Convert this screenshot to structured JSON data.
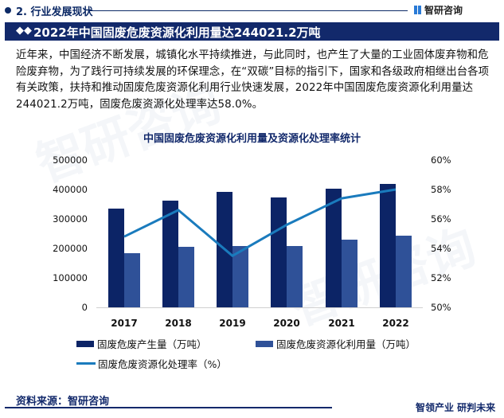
{
  "header": {
    "section_label": "2. 行业发展现状",
    "brand": "智研咨询",
    "title": "2022年中国固废危废资源化利用量达244021.2万吨",
    "title_icon": "diamond-icon"
  },
  "intro": "近年来，中国经济不断发展，城镇化水平持续推进，与此同时，也产生了大量的工业固体废弃物和危险废弃物，为了践行可持续发展的环保理念，在“双碳”目标的指引下，国家和各级政府相继出台各项有关政策，扶持和推动固废危废资源化利用行业快速发展，2022年中国固废危废资源化利用量达244021.2万吨，固废危废资源化处理率达58.0%。",
  "chart_data": {
    "type": "bar+line",
    "title": "中国固废危废资源化利用量及资源化处理率统计",
    "categories": [
      "2017",
      "2018",
      "2019",
      "2020",
      "2021",
      "2022"
    ],
    "series": [
      {
        "name": "固废危废产生量（万吨）",
        "type": "bar",
        "axis": "left",
        "color": "#0c2466",
        "values": [
          335000,
          362000,
          392000,
          373000,
          403000,
          419000
        ]
      },
      {
        "name": "固废危废资源化利用量（万吨）",
        "type": "bar",
        "axis": "left",
        "color": "#2f5198",
        "values": [
          184000,
          205000,
          208000,
          208000,
          230000,
          244021.2
        ]
      },
      {
        "name": "固废危废资源化处理率（%）",
        "type": "line",
        "axis": "right",
        "color": "#1a7bbd",
        "values": [
          54.8,
          56.6,
          53.5,
          55.6,
          57.4,
          58.0
        ]
      }
    ],
    "y_left": {
      "ticks": [
        "500000",
        "400000",
        "300000",
        "200000",
        "100000",
        "0"
      ],
      "range": [
        0,
        500000
      ]
    },
    "y_right": {
      "ticks": [
        "60%",
        "58%",
        "56%",
        "54%",
        "52%",
        "50%"
      ],
      "range": [
        50,
        60
      ]
    },
    "legend_position": "bottom",
    "grid": false
  },
  "legend": {
    "item1": "固废危废产生量（万吨）",
    "item2": "固废危废资源化利用量（万吨）",
    "item3": "固废危废资源化处理率（%）"
  },
  "footer": {
    "source": "资料来源：智研咨询",
    "slogan": "智领产业 研判未来"
  }
}
